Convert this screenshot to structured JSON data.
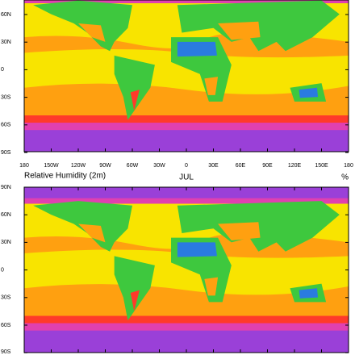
{
  "top_map": {
    "lat_labels": [
      "60N",
      "30N",
      "0",
      "30S",
      "60S",
      "90S"
    ],
    "lon_labels": [
      "180",
      "150W",
      "120W",
      "90W",
      "60W",
      "30W",
      "0",
      "30E",
      "60E",
      "90E",
      "120E",
      "150E",
      "180"
    ]
  },
  "bottom_map": {
    "title": "Relative Humidity (2m)",
    "center_label": "JUL",
    "units": "%",
    "lat_labels": [
      "90N",
      "60N",
      "30N",
      "0",
      "30S",
      "60S",
      "90S"
    ]
  }
}
